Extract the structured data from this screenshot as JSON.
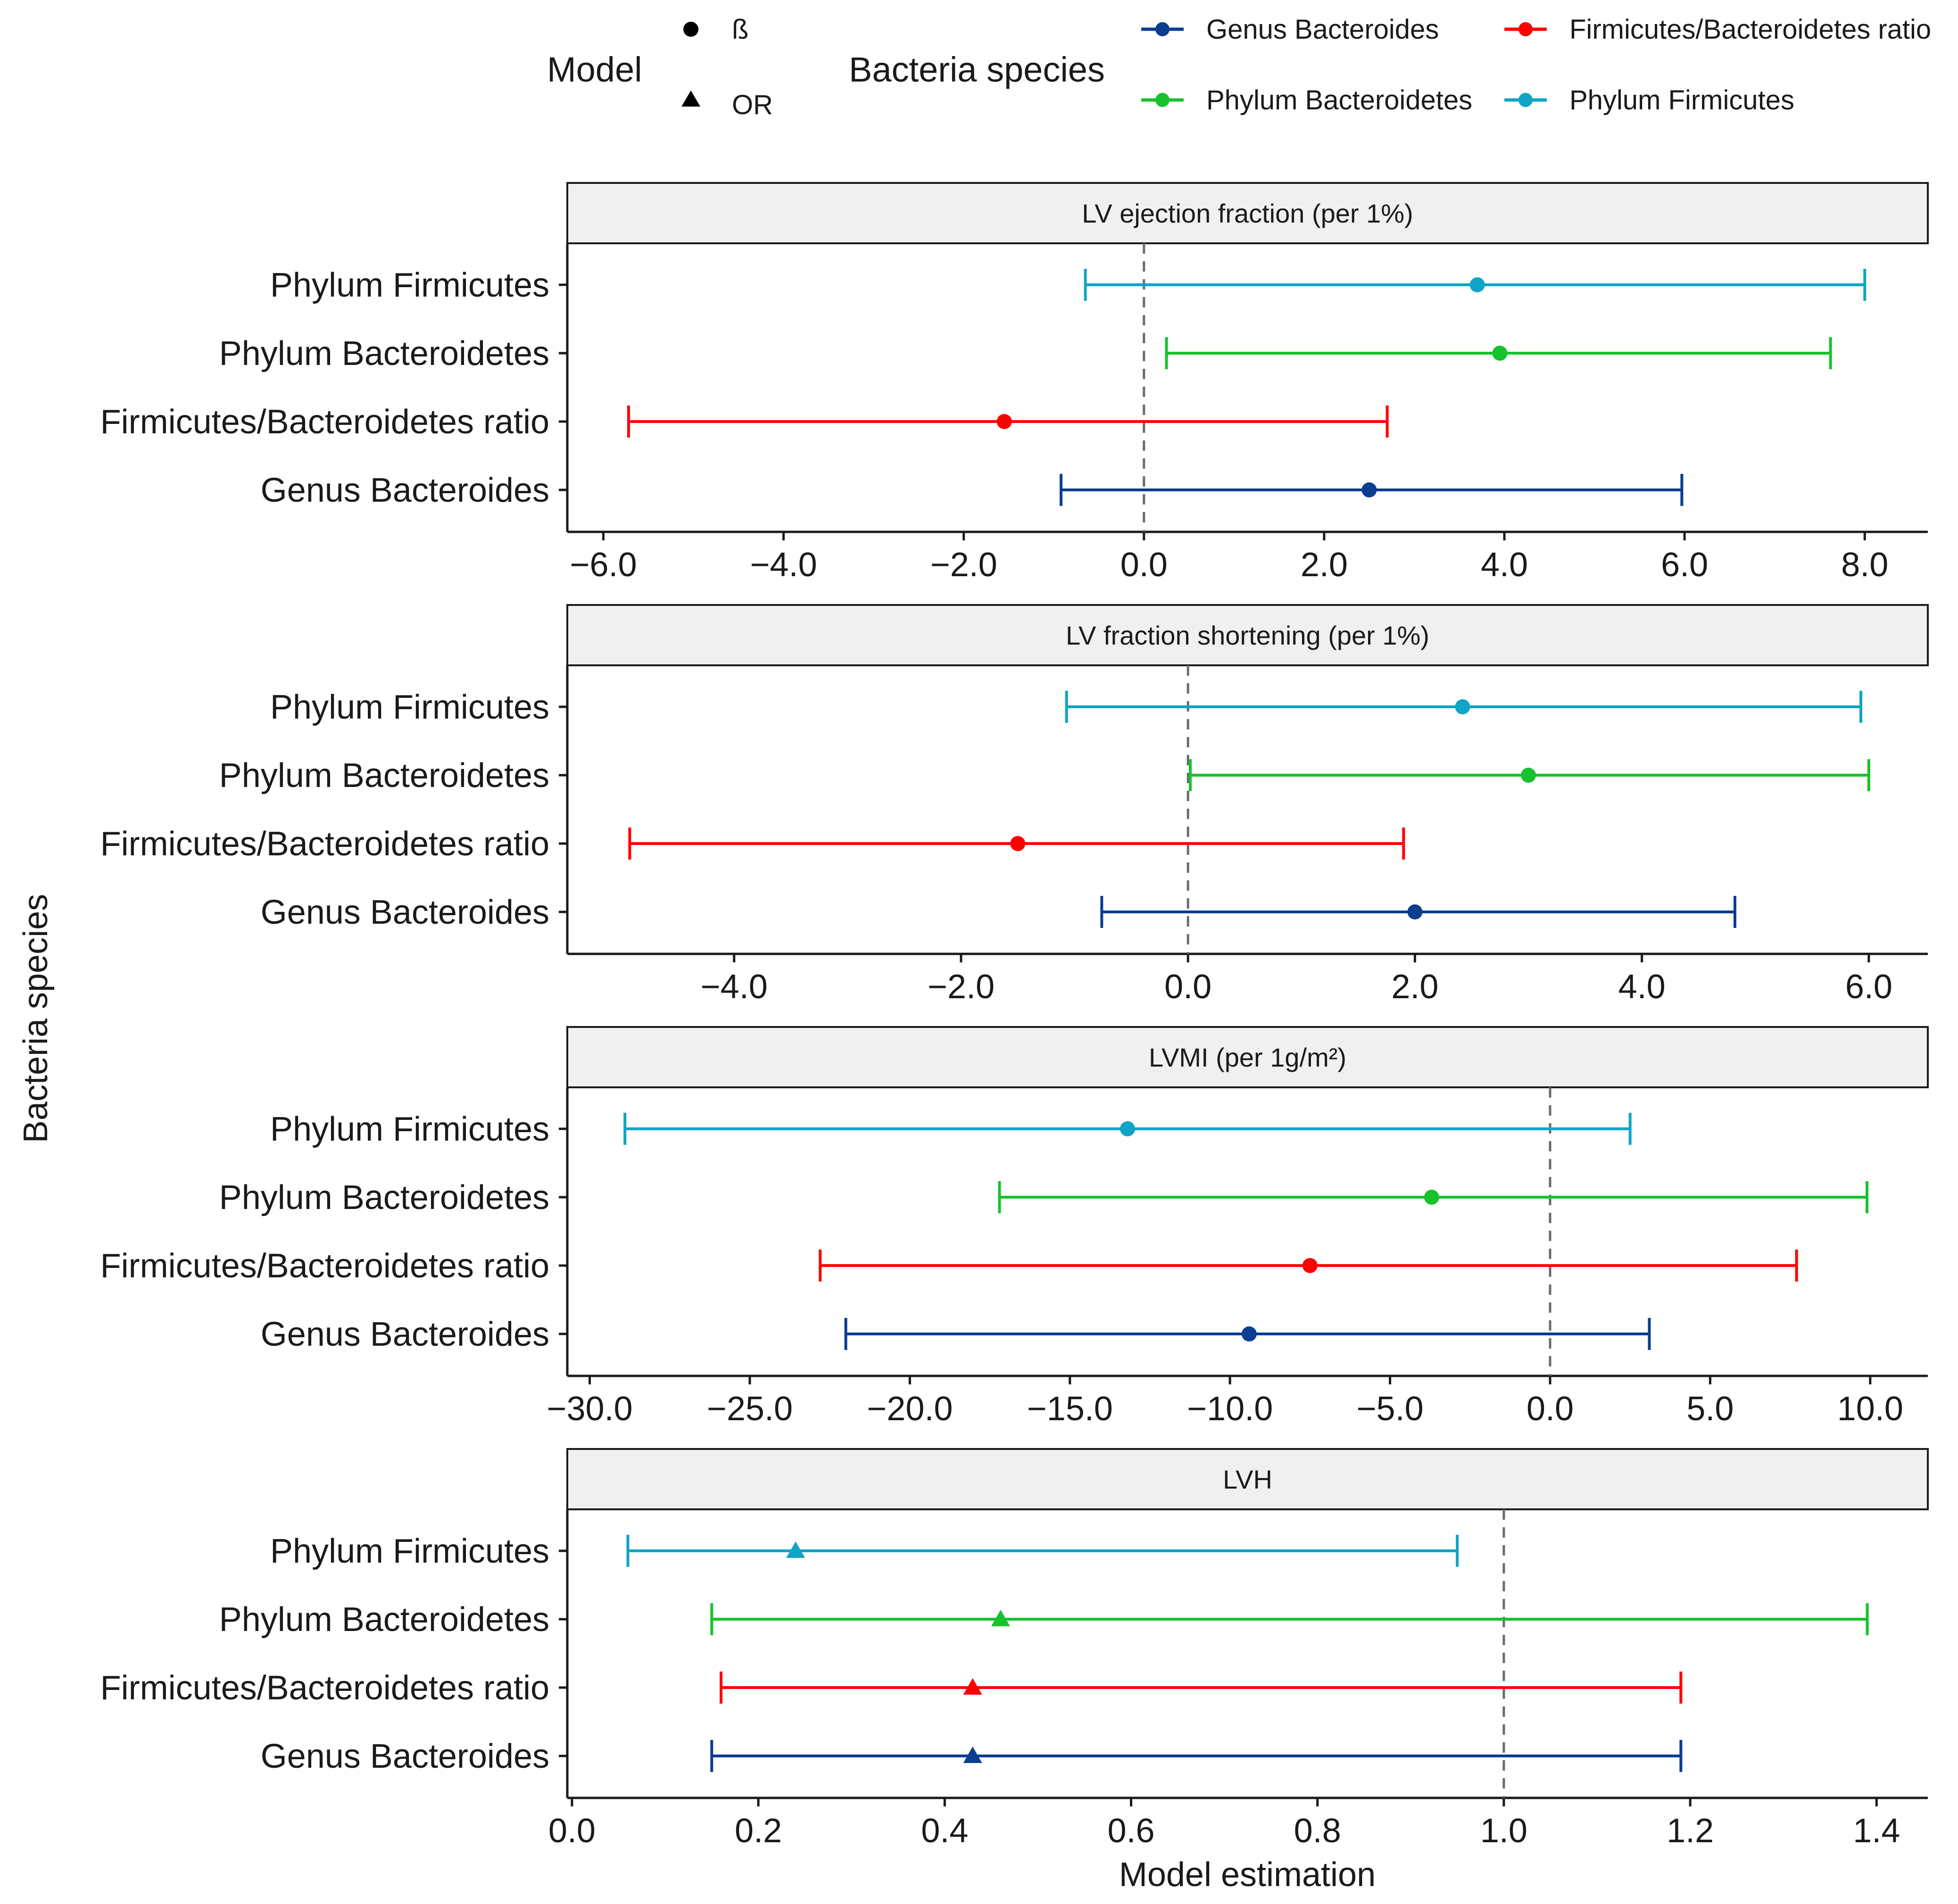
{
  "chart_data": {
    "type": "forest",
    "xlabel": "Model estimation",
    "ylabel": "Bacteria species",
    "categories": [
      "Phylum Firmicutes",
      "Phylum Bacteroidetes",
      "Firmicutes/Bacteroidetes ratio",
      "Genus Bacteroides"
    ],
    "legend": {
      "model_title": "Model",
      "models": [
        {
          "label": "ß",
          "shape": "circle"
        },
        {
          "label": "OR",
          "shape": "triangle"
        }
      ],
      "species_title": "Bacteria species",
      "species": [
        {
          "label": "Genus Bacteroides",
          "color": "#0b3d91"
        },
        {
          "label": "Firmicutes/Bacteroidetes ratio",
          "color": "#ff0000"
        },
        {
          "label": "Phylum Bacteroidetes",
          "color": "#17c22d"
        },
        {
          "label": "Phylum Firmicutes",
          "color": "#0ea5c6"
        }
      ]
    },
    "panels": [
      {
        "title": "LV ejection fraction (per 1%)",
        "model": "ß",
        "reference": 0,
        "xlim": [
          -6.4,
          8.7
        ],
        "ticks": [
          -6,
          -4,
          -2,
          0,
          2,
          4,
          6,
          8
        ],
        "tick_labels": [
          "−6.0",
          "−4.0",
          "−2.0",
          "0.0",
          "2.0",
          "4.0",
          "6.0",
          "8.0"
        ],
        "rows": [
          {
            "species": "Phylum Firmicutes",
            "estimate": 3.7,
            "lower": -0.65,
            "upper": 8.0
          },
          {
            "species": "Phylum Bacteroidetes",
            "estimate": 3.95,
            "lower": 0.25,
            "upper": 7.62
          },
          {
            "species": "Firmicutes/Bacteroidetes ratio",
            "estimate": -1.55,
            "lower": -5.72,
            "upper": 2.7
          },
          {
            "species": "Genus Bacteroides",
            "estimate": 2.5,
            "lower": -0.92,
            "upper": 5.97
          }
        ]
      },
      {
        "title": "LV fraction shortening (per 1%)",
        "model": "ß",
        "reference": 0,
        "xlim": [
          -5.47,
          6.52
        ],
        "ticks": [
          -4,
          -2,
          0,
          2,
          4,
          6
        ],
        "tick_labels": [
          "−4.0",
          "−2.0",
          "0.0",
          "2.0",
          "4.0",
          "6.0"
        ],
        "rows": [
          {
            "species": "Phylum Firmicutes",
            "estimate": 2.42,
            "lower": -1.07,
            "upper": 5.93
          },
          {
            "species": "Phylum Bacteroidetes",
            "estimate": 3.0,
            "lower": 0.02,
            "upper": 6.0
          },
          {
            "species": "Firmicutes/Bacteroidetes ratio",
            "estimate": -1.5,
            "lower": -4.92,
            "upper": 1.9
          },
          {
            "species": "Genus Bacteroides",
            "estimate": 2.0,
            "lower": -0.76,
            "upper": 4.82
          }
        ]
      },
      {
        "title": "LVMI (per 1g/m²)",
        "model": "ß",
        "reference": 0,
        "xlim": [
          -30.7,
          11.8
        ],
        "ticks": [
          -30,
          -25,
          -20,
          -15,
          -10,
          -5,
          0,
          5,
          10
        ],
        "tick_labels": [
          "−30.0",
          "−25.0",
          "−20.0",
          "−15.0",
          "−10.0",
          "−5.0",
          "0.0",
          "5.0",
          "10.0"
        ],
        "rows": [
          {
            "species": "Phylum Firmicutes",
            "estimate": -13.2,
            "lower": -28.9,
            "upper": 2.5
          },
          {
            "species": "Phylum Bacteroidetes",
            "estimate": -3.7,
            "lower": -17.2,
            "upper": 9.9
          },
          {
            "species": "Firmicutes/Bacteroidetes ratio",
            "estimate": -7.5,
            "lower": -22.8,
            "upper": 7.7
          },
          {
            "species": "Genus Bacteroides",
            "estimate": -9.4,
            "lower": -22.0,
            "upper": 3.1
          }
        ]
      },
      {
        "title": "LVH",
        "model": "OR",
        "reference": 1,
        "xlim": [
          -0.005,
          1.455
        ],
        "ticks": [
          0,
          0.2,
          0.4,
          0.6,
          0.8,
          1.0,
          1.2,
          1.4
        ],
        "tick_labels": [
          "0.0",
          "0.2",
          "0.4",
          "0.6",
          "0.8",
          "1.0",
          "1.2",
          "1.4"
        ],
        "rows": [
          {
            "species": "Phylum Firmicutes",
            "estimate": 0.24,
            "lower": 0.06,
            "upper": 0.95
          },
          {
            "species": "Phylum Bacteroidetes",
            "estimate": 0.46,
            "lower": 0.15,
            "upper": 1.39
          },
          {
            "species": "Firmicutes/Bacteroidetes ratio",
            "estimate": 0.43,
            "lower": 0.16,
            "upper": 1.19
          },
          {
            "species": "Genus Bacteroides",
            "estimate": 0.43,
            "lower": 0.15,
            "upper": 1.19
          }
        ]
      }
    ]
  }
}
